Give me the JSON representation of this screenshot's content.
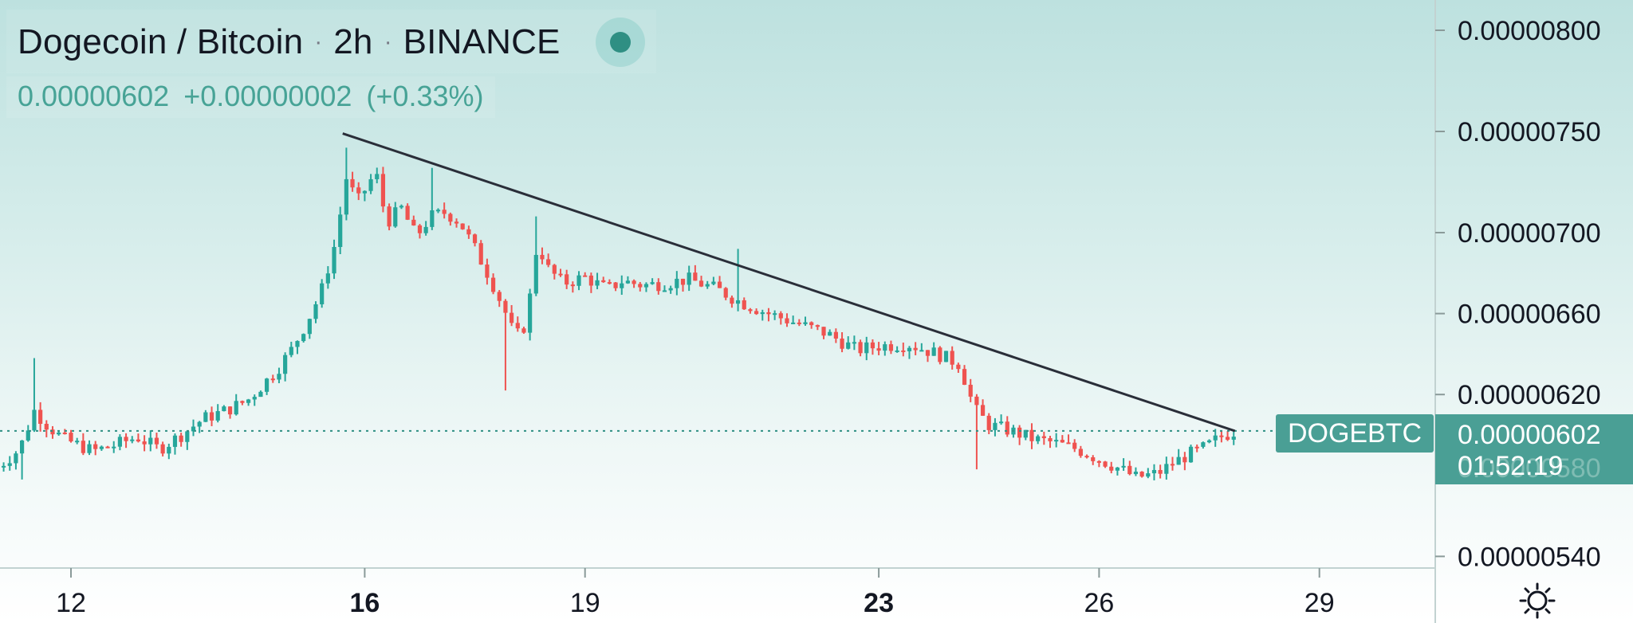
{
  "header": {
    "symbol": "Dogecoin / Bitcoin",
    "interval": "2h",
    "exchange": "BINANCE",
    "last_price": "0.00000602",
    "change": "+0.00000002",
    "change_pct": "(+0.33%)"
  },
  "price_label": {
    "ticker": "DOGEBTC",
    "price": "0.00000602",
    "countdown": "01:52:19",
    "hidden_tick": "0.00000580"
  },
  "colors": {
    "up": "#26a69a",
    "down": "#ef5350",
    "trendline": "#2a2e39",
    "label_bg": "#4a9f95",
    "grid": "#c8d6d5"
  },
  "icons": {
    "settings": "gear-icon"
  },
  "chart_data": {
    "type": "candlestick",
    "title": "Dogecoin / Bitcoin · 2h · BINANCE",
    "x_ticks": [
      {
        "day": 12,
        "label": "12",
        "bold": false
      },
      {
        "day": 16,
        "label": "16",
        "bold": true
      },
      {
        "day": 19,
        "label": "19",
        "bold": false
      },
      {
        "day": 23,
        "label": "23",
        "bold": true
      },
      {
        "day": 26,
        "label": "26",
        "bold": false
      },
      {
        "day": 29,
        "label": "29",
        "bold": false
      }
    ],
    "y_ticks": [
      {
        "value": 8.0,
        "label": "0.00000800"
      },
      {
        "value": 7.5,
        "label": "0.00000750"
      },
      {
        "value": 7.0,
        "label": "0.00000700"
      },
      {
        "value": 6.6,
        "label": "0.00000660"
      },
      {
        "value": 6.2,
        "label": "0.00000620"
      },
      {
        "value": 5.4,
        "label": "0.00000540"
      }
    ],
    "y_unit": "1e-6 BTC",
    "last_price": 6.02,
    "trendline": {
      "from": {
        "day": 15.7,
        "price": 7.49
      },
      "to": {
        "day": 27.85,
        "price": 6.02
      }
    },
    "close_path": [
      [
        11.0,
        5.84
      ],
      [
        11.3,
        5.93
      ],
      [
        11.5,
        6.12
      ],
      [
        11.7,
        6.04
      ],
      [
        11.9,
        5.98
      ],
      [
        12.3,
        5.92
      ],
      [
        12.6,
        5.95
      ],
      [
        12.9,
        5.99
      ],
      [
        13.2,
        5.93
      ],
      [
        13.5,
        6.0
      ],
      [
        13.8,
        6.08
      ],
      [
        14.1,
        6.12
      ],
      [
        14.4,
        6.17
      ],
      [
        14.8,
        6.32
      ],
      [
        15.0,
        6.42
      ],
      [
        15.2,
        6.55
      ],
      [
        15.4,
        6.7
      ],
      [
        15.6,
        6.95
      ],
      [
        15.75,
        7.27
      ],
      [
        15.9,
        7.15
      ],
      [
        16.15,
        7.3
      ],
      [
        16.3,
        7.05
      ],
      [
        16.5,
        7.12
      ],
      [
        16.7,
        6.98
      ],
      [
        16.9,
        7.08
      ],
      [
        17.1,
        7.1
      ],
      [
        17.3,
        7.05
      ],
      [
        17.5,
        6.92
      ],
      [
        17.7,
        6.78
      ],
      [
        17.9,
        6.62
      ],
      [
        18.05,
        6.48
      ],
      [
        18.2,
        6.55
      ],
      [
        18.35,
        6.95
      ],
      [
        18.5,
        6.82
      ],
      [
        18.7,
        6.75
      ],
      [
        19.0,
        6.78
      ],
      [
        19.3,
        6.72
      ],
      [
        19.5,
        6.76
      ],
      [
        19.8,
        6.74
      ],
      [
        20.1,
        6.75
      ],
      [
        20.4,
        6.77
      ],
      [
        20.8,
        6.72
      ],
      [
        21.1,
        6.66
      ],
      [
        21.5,
        6.6
      ],
      [
        21.9,
        6.55
      ],
      [
        22.3,
        6.5
      ],
      [
        22.7,
        6.42
      ],
      [
        23.0,
        6.44
      ],
      [
        23.4,
        6.45
      ],
      [
        23.8,
        6.4
      ],
      [
        24.1,
        6.35
      ],
      [
        24.3,
        6.13
      ],
      [
        24.5,
        6.05
      ],
      [
        24.8,
        6.02
      ],
      [
        25.1,
        5.98
      ],
      [
        25.4,
        5.96
      ],
      [
        25.7,
        5.93
      ],
      [
        26.0,
        5.88
      ],
      [
        26.3,
        5.83
      ],
      [
        26.5,
        5.79
      ],
      [
        26.8,
        5.81
      ],
      [
        27.0,
        5.86
      ],
      [
        27.2,
        5.9
      ],
      [
        27.45,
        5.94
      ],
      [
        27.65,
        5.99
      ],
      [
        27.85,
        6.02
      ]
    ],
    "spikes": [
      {
        "day": 17.9,
        "low": 6.22
      },
      {
        "day": 24.3,
        "low": 5.83
      },
      {
        "day": 11.3,
        "low": 5.78
      },
      {
        "day": 15.75,
        "high": 7.42
      },
      {
        "day": 18.35,
        "high": 7.08
      },
      {
        "day": 16.9,
        "high": 7.32
      },
      {
        "day": 21.1,
        "high": 6.92
      },
      {
        "day": 11.5,
        "high": 6.38
      }
    ]
  }
}
